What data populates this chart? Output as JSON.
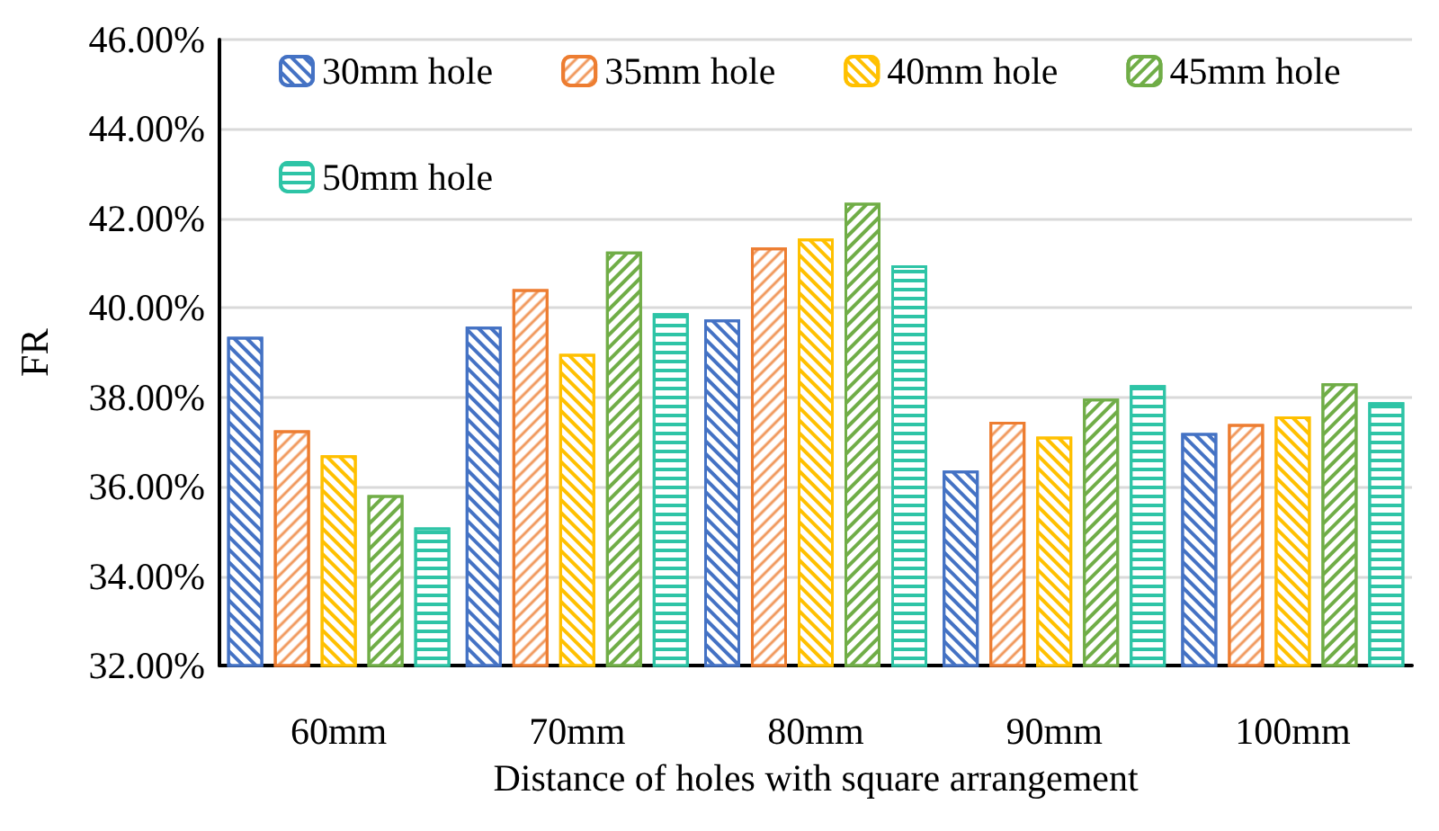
{
  "chart_data": {
    "type": "bar",
    "xlabel": "Distance of holes with square arrangement",
    "ylabel": "FR",
    "categories": [
      "60mm",
      "70mm",
      "80mm",
      "90mm",
      "100mm"
    ],
    "series": [
      {
        "name": "30mm hole",
        "color": "#4472c4",
        "values": [
          39.35,
          39.58,
          39.74,
          36.36,
          37.2
        ]
      },
      {
        "name": "35mm hole",
        "color": "#ed7d31",
        "values": [
          37.26,
          40.42,
          41.35,
          37.45,
          37.4
        ]
      },
      {
        "name": "40mm hole",
        "color": "#ffc000",
        "values": [
          36.7,
          38.97,
          41.55,
          37.12,
          37.57
        ]
      },
      {
        "name": "45mm hole",
        "color": "#70ad47",
        "values": [
          35.81,
          41.26,
          42.35,
          37.97,
          38.31
        ]
      },
      {
        "name": "50mm hole",
        "color": "#2ec4a6",
        "values": [
          35.09,
          39.88,
          40.95,
          38.27,
          37.89
        ]
      }
    ],
    "ylim": [
      32,
      46
    ],
    "yticks": [
      {
        "value": 32,
        "label": "32.00%"
      },
      {
        "value": 34,
        "label": "34.00%"
      },
      {
        "value": 36,
        "label": "36.00%"
      },
      {
        "value": 38,
        "label": "38.00%"
      },
      {
        "value": 40,
        "label": "40.00%"
      },
      {
        "value": 42,
        "label": "42.00%"
      },
      {
        "value": 44,
        "label": "44.00%"
      },
      {
        "value": 46,
        "label": "46.00%"
      }
    ],
    "grid": "y",
    "legend": "top left"
  }
}
